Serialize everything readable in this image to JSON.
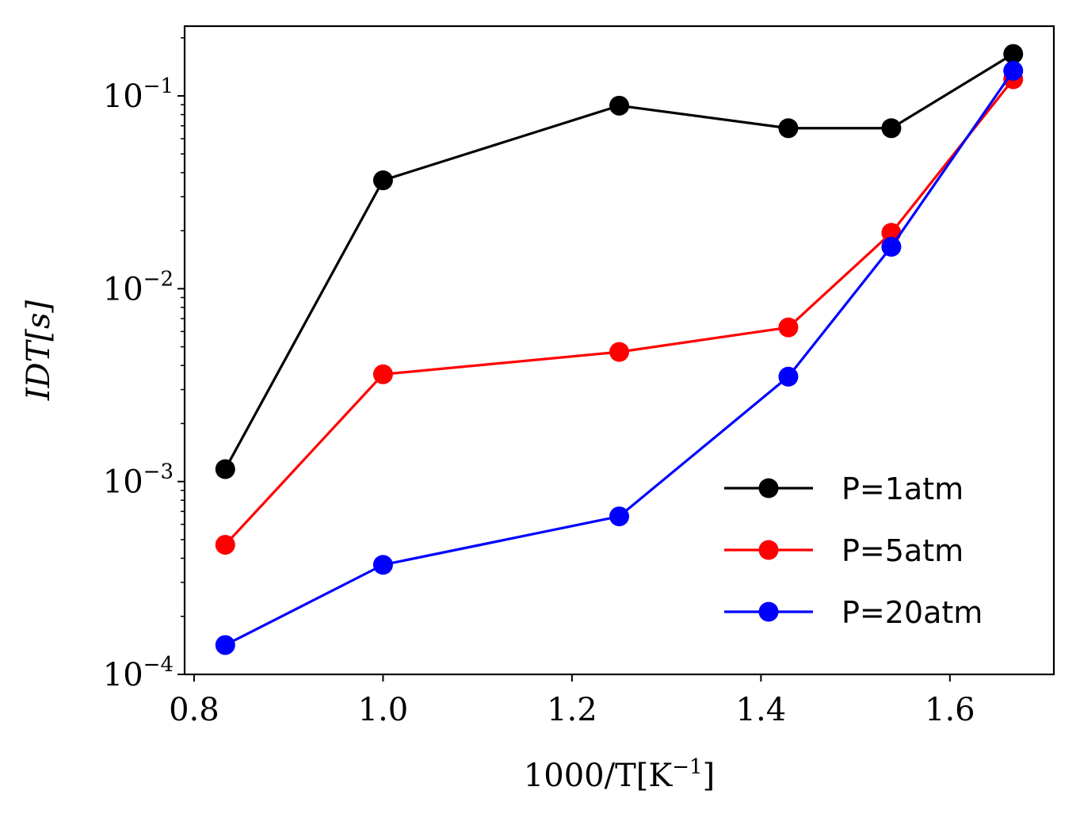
{
  "chart_data": {
    "type": "line",
    "xlabel": "1000/T[K^{-1}]",
    "xlabel_parts": {
      "main": "1000/T[K",
      "sup": "−1",
      "tail": "]"
    },
    "ylabel": "IDT[s]",
    "xlim": [
      0.79,
      1.71
    ],
    "ylim": [
      0.0001,
      0.23
    ],
    "yscale": "log",
    "x_ticks": [
      0.8,
      1.0,
      1.2,
      1.4,
      1.6
    ],
    "x_tick_labels": [
      "0.8",
      "1.0",
      "1.2",
      "1.4",
      "1.6"
    ],
    "y_ticks": [
      0.0001,
      0.001,
      0.01,
      0.1
    ],
    "y_tick_labels": [
      {
        "base": "10",
        "exp": "−4"
      },
      {
        "base": "10",
        "exp": "−3"
      },
      {
        "base": "10",
        "exp": "−2"
      },
      {
        "base": "10",
        "exp": "−1"
      }
    ],
    "grid": false,
    "legend_position": "bottom-right",
    "x": [
      0.833,
      1.0,
      1.25,
      1.429,
      1.538,
      1.667
    ],
    "series": [
      {
        "name": "P=1atm",
        "color": "#000000",
        "values": [
          0.00116,
          0.0365,
          0.089,
          0.068,
          0.068,
          0.165
        ]
      },
      {
        "name": "P=5atm",
        "color": "#ff0000",
        "values": [
          0.00047,
          0.0036,
          0.0047,
          0.0063,
          0.0195,
          0.122
        ]
      },
      {
        "name": "P=20atm",
        "color": "#0000ff",
        "values": [
          0.000142,
          0.00037,
          0.00066,
          0.0035,
          0.0165,
          0.135
        ]
      }
    ]
  }
}
